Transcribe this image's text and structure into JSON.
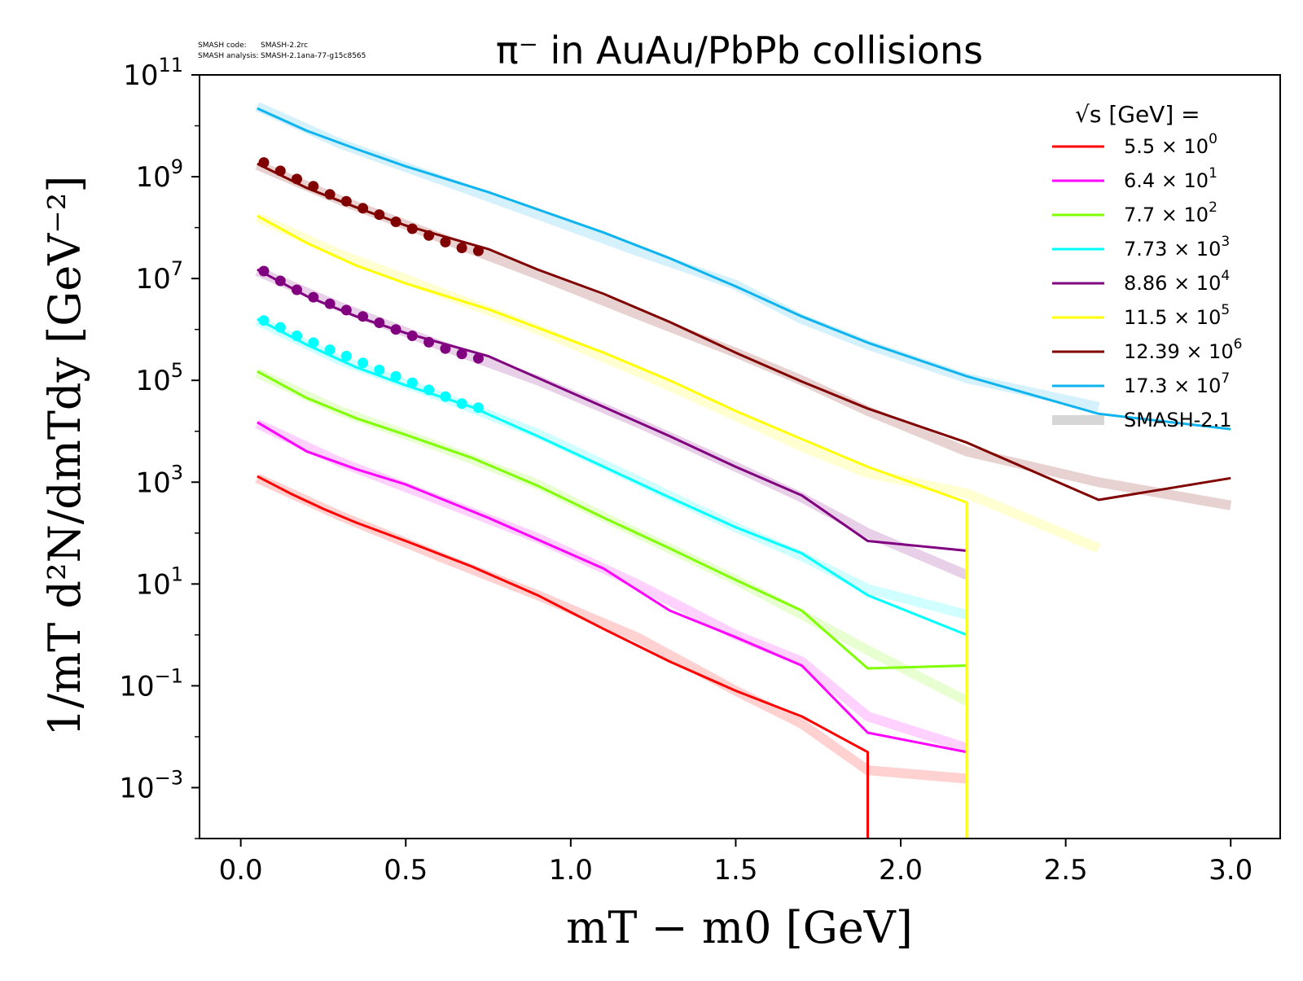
{
  "watermark": {
    "line1_label": "SMASH code:",
    "line1_value": "SMASH-2.2rc",
    "line2_label": "SMASH analysis:",
    "line2_value": "SMASH-2.1ana-77-g15c8565"
  },
  "chart_data": {
    "type": "line",
    "title": "π⁻ in AuAu/PbPb collisions",
    "xlabel": "mT − m0 [GeV]",
    "ylabel": "1/mT d²N/dmTdy [GeV⁻²]",
    "xlim": [
      -0.125,
      3.15
    ],
    "ylim": [
      0.0001,
      100000000000
    ],
    "yscale": "log",
    "grid": false,
    "x_ticks": [
      0.0,
      0.5,
      1.0,
      1.5,
      2.0,
      2.5,
      3.0
    ],
    "x_tick_labels": [
      "0.0",
      "0.5",
      "1.0",
      "1.5",
      "2.0",
      "2.5",
      "3.0"
    ],
    "y_tick_exponents": [
      -3,
      -1,
      1,
      3,
      5,
      7,
      9,
      11
    ],
    "legend_title": "√s [GeV] =",
    "legend_placement": "top-right",
    "series": [
      {
        "name": "5.5 × 10⁰",
        "mantissa": "5.5",
        "exponent": "0",
        "color": "#ff0000",
        "x": [
          0.05,
          0.15,
          0.25,
          0.35,
          0.5,
          0.7,
          0.9,
          1.1,
          1.3,
          1.5,
          1.7,
          1.9,
          1.9
        ],
        "y": [
          1300,
          600,
          300,
          160,
          70,
          22,
          6,
          1.3,
          0.3,
          0.08,
          0.025,
          0.005,
          0.0001
        ],
        "band_x": [
          0.05,
          0.3,
          0.6,
          0.9,
          1.2,
          1.5,
          1.7,
          1.9,
          2.2
        ],
        "band_y": [
          1200,
          220,
          35,
          6,
          0.9,
          0.08,
          0.018,
          0.0022,
          0.0015
        ]
      },
      {
        "name": "6.4 × 10¹",
        "mantissa": "6.4",
        "exponent": "1",
        "color": "#ff00ff",
        "x": [
          0.05,
          0.2,
          0.35,
          0.5,
          0.75,
          1.1,
          1.3,
          1.5,
          1.7,
          1.9,
          2.2
        ],
        "y": [
          15000,
          4000,
          1800,
          900,
          200,
          20,
          3,
          0.9,
          0.25,
          0.012,
          0.005
        ],
        "band_x": [
          0.05,
          0.3,
          0.6,
          0.9,
          1.2,
          1.5,
          1.7,
          1.9,
          2.2
        ],
        "band_y": [
          14000,
          2500,
          450,
          80,
          10,
          1,
          0.3,
          0.025,
          0.006
        ]
      },
      {
        "name": "7.7 × 10²",
        "mantissa": "7.7",
        "exponent": "2",
        "color": "#7fff00",
        "x": [
          0.05,
          0.2,
          0.35,
          0.5,
          0.7,
          0.9,
          1.1,
          1.3,
          1.5,
          1.7,
          1.9,
          2.2
        ],
        "y": [
          150000,
          45000,
          18000,
          8500,
          3000,
          850,
          200,
          50,
          12,
          3,
          0.22,
          0.25
        ],
        "band_x": [
          0.05,
          0.3,
          0.6,
          0.9,
          1.2,
          1.5,
          1.7,
          1.9,
          2.2
        ],
        "band_y": [
          140000,
          25000,
          5000,
          900,
          100,
          12,
          2.5,
          0.5,
          0.05
        ]
      },
      {
        "name": "7.73 × 10³",
        "mantissa": "7.73",
        "exponent": "3",
        "color": "#00ffff",
        "x": [
          0.05,
          0.2,
          0.35,
          0.5,
          0.7,
          0.9,
          1.1,
          1.3,
          1.5,
          1.7,
          1.9,
          2.2
        ],
        "y": [
          1600000,
          500000,
          180000,
          80000,
          30000,
          8000,
          2000,
          500,
          130,
          40,
          6,
          1
        ],
        "band_x": [
          0.05,
          0.3,
          0.6,
          0.9,
          1.2,
          1.5,
          1.7,
          1.9,
          2.2
        ],
        "band_y": [
          1500000,
          250000,
          50000,
          9000,
          1100,
          130,
          35,
          8,
          2.5
        ],
        "markers_x": [
          0.07,
          0.12,
          0.17,
          0.22,
          0.27,
          0.32,
          0.37,
          0.42,
          0.47,
          0.52,
          0.57,
          0.62,
          0.67,
          0.72
        ],
        "markers_y": [
          1500000,
          1100000,
          750000,
          550000,
          400000,
          300000,
          220000,
          160000,
          120000,
          90000,
          65000,
          48000,
          35000,
          29000
        ]
      },
      {
        "name": "8.86 × 10⁴",
        "mantissa": "8.86",
        "exponent": "4",
        "color": "#800080",
        "x": [
          0.05,
          0.2,
          0.35,
          0.5,
          0.75,
          1.1,
          1.3,
          1.5,
          1.7,
          1.9,
          2.2
        ],
        "y": [
          15000000,
          4500000,
          1800000,
          850000,
          300000,
          30000,
          8000,
          2000,
          550,
          70,
          45
        ],
        "band_x": [
          0.05,
          0.3,
          0.6,
          0.9,
          1.2,
          1.5,
          1.7,
          1.9,
          2.2
        ],
        "band_y": [
          14000000,
          2800000,
          500000,
          100000,
          15000,
          2000,
          500,
          100,
          15
        ],
        "markers_x": [
          0.07,
          0.12,
          0.17,
          0.22,
          0.27,
          0.32,
          0.37,
          0.42,
          0.47,
          0.52,
          0.57,
          0.62,
          0.67,
          0.72
        ],
        "markers_y": [
          14000000,
          9000000,
          6000000,
          4300000,
          3200000,
          2400000,
          1800000,
          1350000,
          1000000,
          750000,
          560000,
          420000,
          330000,
          270000
        ]
      },
      {
        "name": "11.5 × 10⁵",
        "mantissa": "11.5",
        "exponent": "5",
        "color": "#ffff00",
        "x": [
          0.05,
          0.2,
          0.35,
          0.5,
          0.75,
          1.1,
          1.3,
          1.5,
          1.7,
          1.9,
          2.2,
          2.2
        ],
        "y": [
          170000000,
          50000000,
          18000000,
          8000000,
          2500000,
          350000,
          100000,
          25000,
          7000,
          2000,
          400,
          0.0001
        ],
        "band_x": [
          0.05,
          0.3,
          0.6,
          0.9,
          1.2,
          1.5,
          1.7,
          1.9,
          2.2,
          2.6
        ],
        "band_y": [
          160000000,
          30000000,
          5500000,
          1000000,
          150000,
          20000,
          5000,
          1500,
          600,
          50
        ]
      },
      {
        "name": "12.39 × 10⁶",
        "mantissa": "12.39",
        "exponent": "6",
        "color": "#800000",
        "x": [
          0.05,
          0.2,
          0.35,
          0.5,
          0.75,
          0.9,
          1.1,
          1.3,
          1.5,
          1.7,
          1.9,
          2.2,
          2.6,
          3.0
        ],
        "y": [
          1800000000,
          600000000,
          250000000,
          110000000,
          38000000,
          15000000,
          5000000,
          1400000,
          350000,
          95000,
          28000,
          6000,
          450,
          1200
        ],
        "band_x": [
          0.05,
          0.3,
          0.6,
          0.9,
          1.2,
          1.5,
          1.7,
          1.9,
          2.2,
          2.6,
          3.0
        ],
        "band_y": [
          1700000000,
          350000000,
          65000000,
          12000000,
          2000000,
          350000,
          100000,
          25000,
          4000,
          1000,
          350
        ],
        "markers_x": [
          0.07,
          0.12,
          0.17,
          0.22,
          0.27,
          0.32,
          0.37,
          0.42,
          0.47,
          0.52,
          0.57,
          0.62,
          0.67,
          0.72
        ],
        "markers_y": [
          1900000000,
          1300000000,
          900000000,
          650000000,
          450000000,
          330000000,
          240000000,
          180000000,
          130000000,
          95000000,
          70000000,
          52000000,
          40000000,
          35000000
        ]
      },
      {
        "name": "17.3 × 10⁷",
        "mantissa": "17.3",
        "exponent": "7",
        "color": "#0fb4ee",
        "x": [
          0.05,
          0.2,
          0.35,
          0.5,
          0.75,
          1.1,
          1.3,
          1.5,
          1.7,
          1.9,
          2.2,
          2.6,
          3.0
        ],
        "y": [
          22000000000,
          8000000000,
          3500000000,
          1600000000,
          500000000,
          80000000,
          25000000,
          7000000,
          1800000,
          550000,
          120000,
          22000,
          11000
        ],
        "band_x": [
          0.05,
          0.3,
          0.6,
          0.9,
          1.2,
          1.5,
          1.7,
          1.9,
          2.2,
          2.6
        ],
        "band_y": [
          24000000000,
          4500000000,
          900000000,
          180000000,
          35000000,
          7500000,
          1600000,
          500000,
          110000,
          30000
        ]
      }
    ],
    "smash_label": "SMASH-2.1"
  }
}
